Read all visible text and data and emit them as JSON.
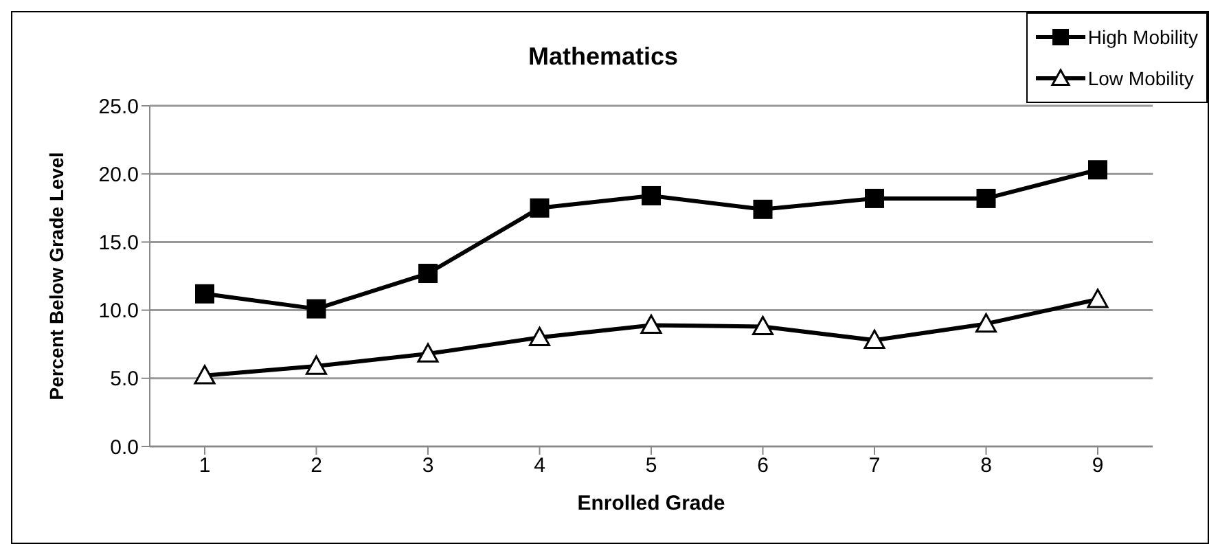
{
  "chart_data": {
    "type": "line",
    "title": "Mathematics",
    "xlabel": "Enrolled Grade",
    "ylabel": "Percent Below Grade Level",
    "categories": [
      "1",
      "2",
      "3",
      "4",
      "5",
      "6",
      "7",
      "8",
      "9"
    ],
    "series": [
      {
        "name": "High Mobility",
        "color": "#000000",
        "marker": "square",
        "values": [
          11.2,
          10.1,
          12.7,
          17.5,
          18.4,
          17.4,
          18.2,
          18.2,
          20.3
        ]
      },
      {
        "name": "Low Mobility",
        "color": "#000000",
        "marker": "triangle",
        "values": [
          5.2,
          5.9,
          6.8,
          8.0,
          8.9,
          8.8,
          7.8,
          9.0,
          10.8
        ]
      }
    ],
    "ylim": [
      0,
      25
    ],
    "yticks": [
      {
        "value": 0,
        "label": "0.0"
      },
      {
        "value": 5,
        "label": "5.0"
      },
      {
        "value": 10,
        "label": "10.0"
      },
      {
        "value": 15,
        "label": "15.0"
      },
      {
        "value": 20,
        "label": "20.0"
      },
      {
        "value": 25,
        "label": "25.0"
      }
    ],
    "grid": "y",
    "legend": "top right",
    "line_style": "solid"
  }
}
